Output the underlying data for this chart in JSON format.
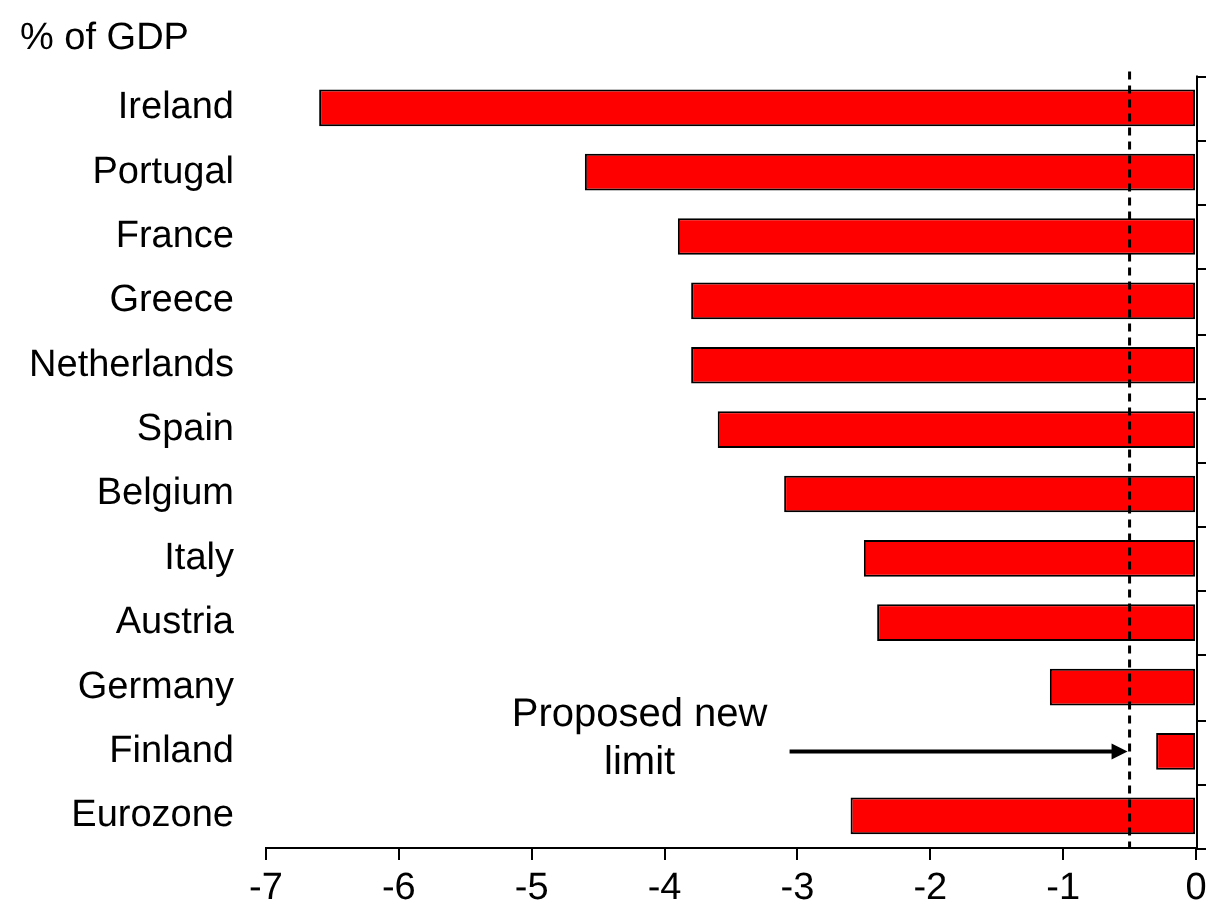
{
  "chart_data": {
    "type": "bar",
    "orientation": "horizontal",
    "subtitle": "% of GDP",
    "categories": [
      "Ireland",
      "Portugal",
      "France",
      "Greece",
      "Netherlands",
      "Spain",
      "Belgium",
      "Italy",
      "Austria",
      "Germany",
      "Finland",
      "Eurozone"
    ],
    "values": [
      -6.6,
      -4.6,
      -3.9,
      -3.8,
      -3.8,
      -3.6,
      -3.1,
      -2.5,
      -2.4,
      -1.1,
      -0.3,
      -2.6
    ],
    "color": "#ff0000",
    "xlim": [
      -7,
      0
    ],
    "xticks": [
      -7,
      -6,
      -5,
      -4,
      -3,
      -2,
      -1,
      0
    ],
    "ref_lines": [
      {
        "axis": "x",
        "value": -0.5,
        "label": "Proposed new limit",
        "color": "#000000",
        "line_style": "dashed"
      }
    ]
  }
}
